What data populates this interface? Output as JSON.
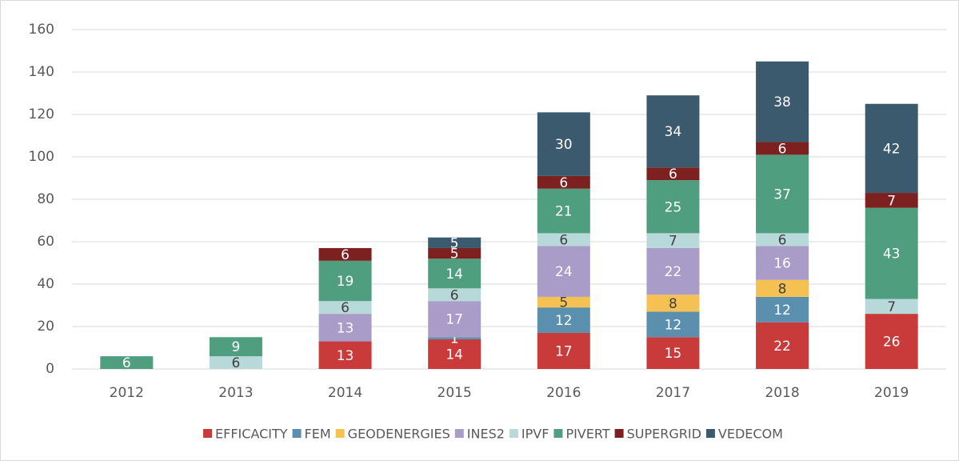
{
  "chart_data": {
    "type": "bar",
    "stacked": true,
    "categories": [
      "2012",
      "2013",
      "2014",
      "2015",
      "2016",
      "2017",
      "2018",
      "2019"
    ],
    "series": [
      {
        "name": "EFFICACITY",
        "color": "#c93b3b",
        "values": [
          null,
          null,
          13,
          14,
          17,
          15,
          22,
          26
        ]
      },
      {
        "name": "FEM",
        "color": "#5a8fad",
        "values": [
          null,
          null,
          null,
          1,
          12,
          12,
          12,
          null
        ]
      },
      {
        "name": "GEODENERGIES",
        "color": "#f6c153",
        "values": [
          null,
          null,
          null,
          null,
          5,
          8,
          8,
          null
        ]
      },
      {
        "name": "INES2",
        "color": "#a99cc9",
        "values": [
          null,
          null,
          13,
          17,
          24,
          22,
          16,
          null
        ]
      },
      {
        "name": "IPVF",
        "color": "#b8d9d9",
        "values": [
          null,
          6,
          6,
          6,
          6,
          7,
          6,
          7
        ]
      },
      {
        "name": "PIVERT",
        "color": "#4f9e80",
        "values": [
          6,
          9,
          19,
          14,
          21,
          25,
          37,
          43
        ]
      },
      {
        "name": "SUPERGRID",
        "color": "#7c2020",
        "values": [
          null,
          null,
          6,
          5,
          6,
          6,
          6,
          7
        ]
      },
      {
        "name": "VEDECOM",
        "color": "#3b5a6d",
        "values": [
          null,
          null,
          null,
          5,
          30,
          34,
          38,
          42
        ]
      }
    ],
    "ylim": [
      0,
      160
    ],
    "yticks": [
      0,
      20,
      40,
      60,
      80,
      100,
      120,
      140,
      160
    ],
    "grid": true,
    "legend": "bottom"
  }
}
